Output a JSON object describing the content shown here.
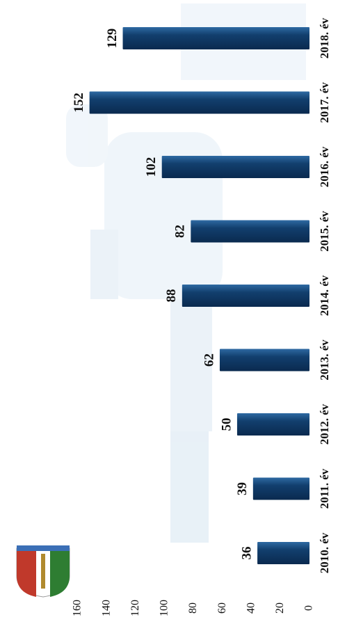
{
  "chart_data": {
    "type": "bar",
    "orientation": "rotated-90-clockwise",
    "categories": [
      "2010. év",
      "2011. év",
      "2012. év",
      "2013. év",
      "2014. év",
      "2015. év",
      "2016. év",
      "2017. év",
      "2018. év"
    ],
    "values": [
      36,
      39,
      50,
      62,
      88,
      82,
      102,
      152,
      129
    ],
    "data_labels": [
      "36",
      "39",
      "50",
      "62",
      "88",
      "82",
      "102",
      "152",
      "129"
    ],
    "value_ticks": [
      "0",
      "20",
      "40",
      "60",
      "80",
      "100",
      "120",
      "140",
      "160"
    ],
    "ylim": [
      0,
      160
    ],
    "grid": false,
    "legend": "none",
    "colors": {
      "bar": "#123f6e",
      "bar_highlight": "#2e6aa3",
      "text": "#111111",
      "background_tint": "#cfe0ee"
    }
  },
  "logo": {
    "icon": "crest-icon"
  }
}
